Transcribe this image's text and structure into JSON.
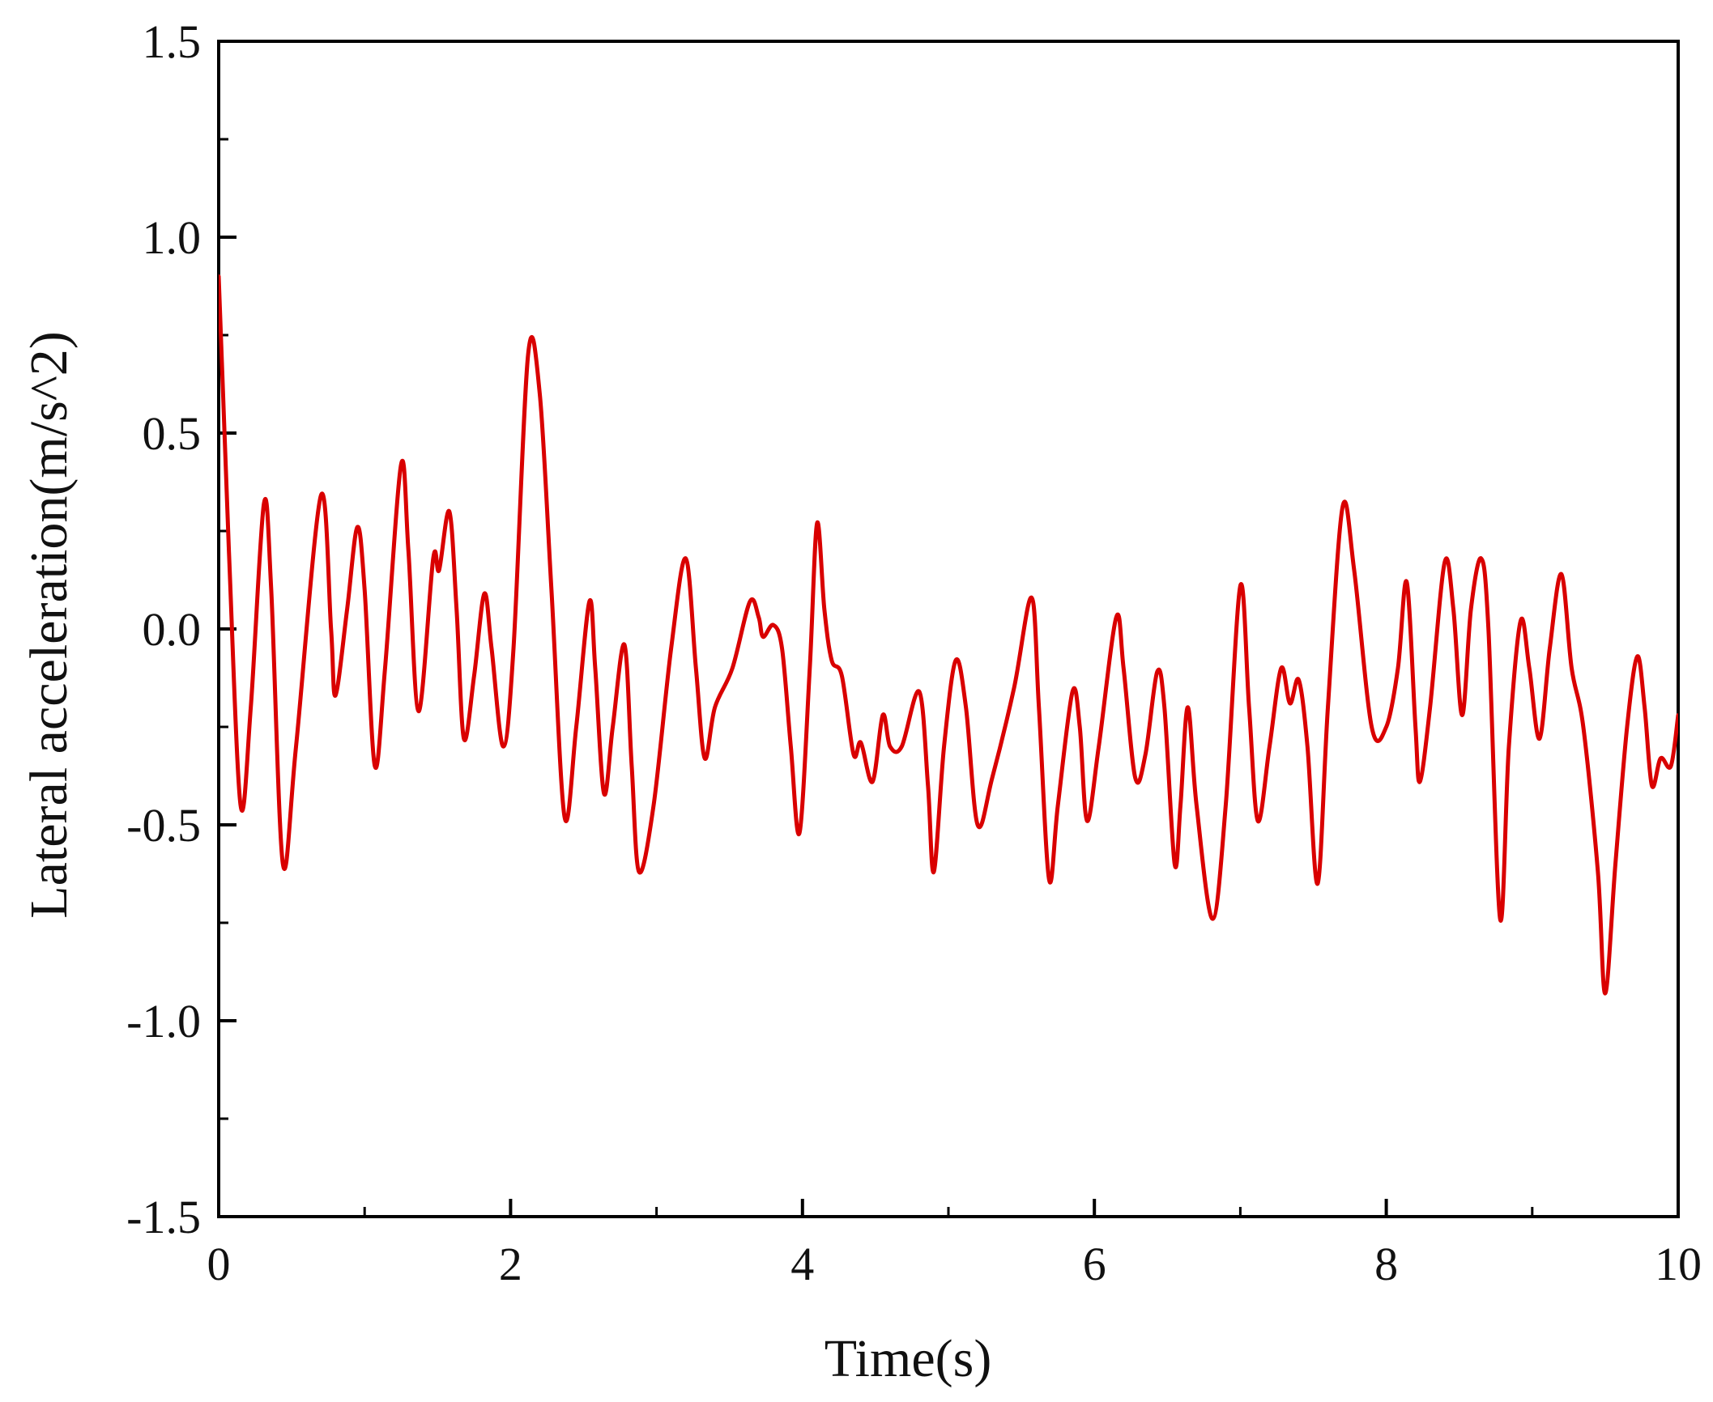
{
  "chart_data": {
    "type": "line",
    "xlabel": "Time(s)",
    "ylabel": "Lateral acceleration(m/s^2)",
    "xlim": [
      0,
      10
    ],
    "ylim": [
      -1.5,
      1.5
    ],
    "x_ticks": [
      0,
      2,
      4,
      6,
      8,
      10
    ],
    "x_tick_labels": [
      "0",
      "2",
      "4",
      "6",
      "8",
      "10"
    ],
    "x_minor_ticks": [
      1,
      3,
      5,
      7,
      9
    ],
    "y_ticks": [
      -1.5,
      -1.0,
      -0.5,
      0.0,
      0.5,
      1.0,
      1.5
    ],
    "y_tick_labels": [
      "-1.5",
      "-1.0",
      "-0.5",
      "0.0",
      "0.5",
      "1.0",
      "1.5"
    ],
    "y_minor_ticks": [
      -1.25,
      -0.75,
      -0.25,
      0.25,
      0.75,
      1.25
    ],
    "grid": false,
    "colors": {
      "line": "#d90000",
      "axis": "#000000"
    },
    "series": [
      {
        "points": [
          [
            0.0,
            0.9
          ],
          [
            0.03,
            0.6
          ],
          [
            0.07,
            0.2
          ],
          [
            0.15,
            -0.45
          ],
          [
            0.22,
            -0.2
          ],
          [
            0.31,
            0.32
          ],
          [
            0.36,
            0.1
          ],
          [
            0.44,
            -0.6
          ],
          [
            0.53,
            -0.3
          ],
          [
            0.7,
            0.34
          ],
          [
            0.77,
            0.0
          ],
          [
            0.8,
            -0.17
          ],
          [
            0.88,
            0.05
          ],
          [
            0.95,
            0.26
          ],
          [
            1.0,
            0.1
          ],
          [
            1.07,
            -0.35
          ],
          [
            1.14,
            -0.1
          ],
          [
            1.25,
            0.42
          ],
          [
            1.3,
            0.2
          ],
          [
            1.37,
            -0.21
          ],
          [
            1.47,
            0.18
          ],
          [
            1.51,
            0.15
          ],
          [
            1.58,
            0.3
          ],
          [
            1.63,
            0.05
          ],
          [
            1.68,
            -0.28
          ],
          [
            1.75,
            -0.12
          ],
          [
            1.82,
            0.09
          ],
          [
            1.87,
            -0.05
          ],
          [
            1.95,
            -0.3
          ],
          [
            2.02,
            -0.05
          ],
          [
            2.12,
            0.7
          ],
          [
            2.2,
            0.6
          ],
          [
            2.28,
            0.1
          ],
          [
            2.37,
            -0.48
          ],
          [
            2.45,
            -0.25
          ],
          [
            2.54,
            0.07
          ],
          [
            2.58,
            -0.1
          ],
          [
            2.64,
            -0.42
          ],
          [
            2.7,
            -0.25
          ],
          [
            2.78,
            -0.04
          ],
          [
            2.83,
            -0.35
          ],
          [
            2.88,
            -0.62
          ],
          [
            2.98,
            -0.45
          ],
          [
            3.1,
            -0.05
          ],
          [
            3.2,
            0.18
          ],
          [
            3.27,
            -0.1
          ],
          [
            3.33,
            -0.33
          ],
          [
            3.4,
            -0.2
          ],
          [
            3.52,
            -0.1
          ],
          [
            3.64,
            0.07
          ],
          [
            3.7,
            0.03
          ],
          [
            3.73,
            -0.02
          ],
          [
            3.8,
            0.01
          ],
          [
            3.86,
            -0.05
          ],
          [
            3.92,
            -0.3
          ],
          [
            3.98,
            -0.52
          ],
          [
            4.05,
            -0.1
          ],
          [
            4.1,
            0.27
          ],
          [
            4.15,
            0.05
          ],
          [
            4.2,
            -0.08
          ],
          [
            4.27,
            -0.12
          ],
          [
            4.35,
            -0.32
          ],
          [
            4.4,
            -0.29
          ],
          [
            4.48,
            -0.39
          ],
          [
            4.55,
            -0.22
          ],
          [
            4.6,
            -0.3
          ],
          [
            4.68,
            -0.3
          ],
          [
            4.8,
            -0.16
          ],
          [
            4.86,
            -0.4
          ],
          [
            4.9,
            -0.62
          ],
          [
            4.97,
            -0.3
          ],
          [
            5.05,
            -0.08
          ],
          [
            5.12,
            -0.2
          ],
          [
            5.2,
            -0.5
          ],
          [
            5.3,
            -0.38
          ],
          [
            5.45,
            -0.15
          ],
          [
            5.57,
            0.08
          ],
          [
            5.62,
            -0.2
          ],
          [
            5.69,
            -0.64
          ],
          [
            5.75,
            -0.45
          ],
          [
            5.85,
            -0.16
          ],
          [
            5.9,
            -0.25
          ],
          [
            5.95,
            -0.49
          ],
          [
            6.03,
            -0.3
          ],
          [
            6.15,
            0.03
          ],
          [
            6.2,
            -0.1
          ],
          [
            6.28,
            -0.38
          ],
          [
            6.35,
            -0.32
          ],
          [
            6.43,
            -0.11
          ],
          [
            6.48,
            -0.2
          ],
          [
            6.55,
            -0.6
          ],
          [
            6.59,
            -0.45
          ],
          [
            6.64,
            -0.2
          ],
          [
            6.7,
            -0.45
          ],
          [
            6.81,
            -0.74
          ],
          [
            6.9,
            -0.45
          ],
          [
            7.0,
            0.11
          ],
          [
            7.06,
            -0.2
          ],
          [
            7.12,
            -0.49
          ],
          [
            7.2,
            -0.3
          ],
          [
            7.28,
            -0.1
          ],
          [
            7.34,
            -0.19
          ],
          [
            7.4,
            -0.13
          ],
          [
            7.46,
            -0.3
          ],
          [
            7.53,
            -0.65
          ],
          [
            7.6,
            -0.2
          ],
          [
            7.7,
            0.31
          ],
          [
            7.78,
            0.15
          ],
          [
            7.9,
            -0.25
          ],
          [
            8.0,
            -0.25
          ],
          [
            8.08,
            -0.1
          ],
          [
            8.14,
            0.12
          ],
          [
            8.2,
            -0.25
          ],
          [
            8.23,
            -0.39
          ],
          [
            8.3,
            -0.2
          ],
          [
            8.4,
            0.17
          ],
          [
            8.46,
            0.05
          ],
          [
            8.52,
            -0.22
          ],
          [
            8.58,
            0.05
          ],
          [
            8.65,
            0.18
          ],
          [
            8.7,
            0.0
          ],
          [
            8.78,
            -0.74
          ],
          [
            8.84,
            -0.3
          ],
          [
            8.92,
            0.02
          ],
          [
            8.98,
            -0.1
          ],
          [
            9.05,
            -0.28
          ],
          [
            9.12,
            -0.05
          ],
          [
            9.2,
            0.14
          ],
          [
            9.27,
            -0.1
          ],
          [
            9.35,
            -0.25
          ],
          [
            9.45,
            -0.62
          ],
          [
            9.5,
            -0.93
          ],
          [
            9.57,
            -0.6
          ],
          [
            9.65,
            -0.25
          ],
          [
            9.72,
            -0.07
          ],
          [
            9.77,
            -0.2
          ],
          [
            9.82,
            -0.4
          ],
          [
            9.88,
            -0.33
          ],
          [
            9.95,
            -0.35
          ],
          [
            10.0,
            -0.22
          ]
        ]
      }
    ]
  }
}
